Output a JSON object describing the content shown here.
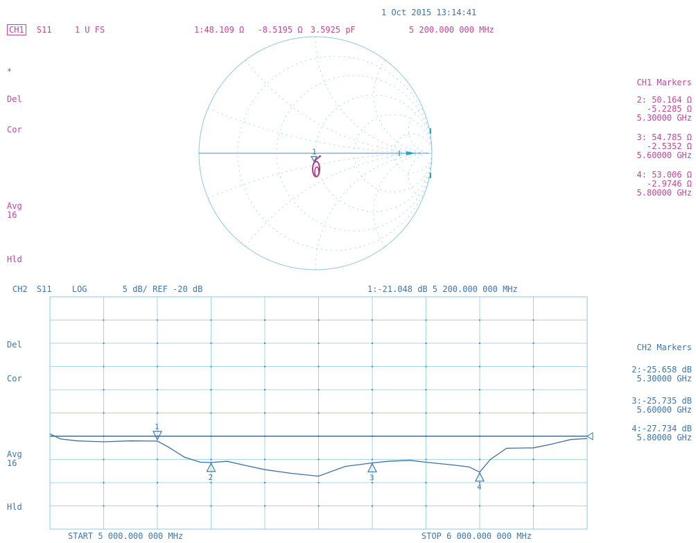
{
  "header": {
    "timestamp": "1 Oct 2015   13:14:41"
  },
  "ch1": {
    "channel": "CH1",
    "param": "S11",
    "format": "1 U FS",
    "marker_readout": {
      "label": "1:",
      "r": "48.109 Ω",
      "x": "-8.5195 Ω",
      "c": "3.5925 pF",
      "freq": "5 200.000 000 MHz"
    },
    "left_flags": [
      "*",
      "Del",
      "Cor",
      "Avg",
      "16",
      "Hld"
    ],
    "markers_title": "CH1 Markers",
    "markers": [
      {
        "id": "2:",
        "r": "50.164 Ω",
        "x": "-5.2285 Ω",
        "freq": "5.30000 GHz"
      },
      {
        "id": "3:",
        "r": "54.785 Ω",
        "x": "-2.5352 Ω",
        "freq": "5.60000 GHz"
      },
      {
        "id": "4:",
        "r": "53.006 Ω",
        "x": "-2.9746 Ω",
        "freq": "5.80000 GHz"
      }
    ],
    "smith_marker_label": "1"
  },
  "ch2": {
    "channel": "CH2",
    "param": "S11",
    "format": "LOG",
    "scale": "5 dB/ REF  -20  dB",
    "marker_readout": "1:-21.048 dB   5 200.000 000 MHz",
    "left_flags": [
      "Del",
      "Cor",
      "Avg",
      "16",
      "Hld"
    ],
    "markers_title": "CH2 Markers",
    "markers": [
      {
        "id": "2:",
        "value": "-25.658 dB",
        "freq": "5.30000 GHz"
      },
      {
        "id": "3:",
        "value": "-25.735 dB",
        "freq": "5.60000 GHz"
      },
      {
        "id": "4:",
        "value": "-27.734 dB",
        "freq": "5.80000 GHz"
      }
    ],
    "start_label": "START 5 000.000 000 MHz",
    "stop_label": "STOP 6 000.000 000 MHz"
  },
  "chart_data": [
    {
      "type": "scatter",
      "chart": "smith",
      "series": [
        {
          "x_ohm": [
            48.1,
            50.2,
            54.8,
            53.0
          ],
          "y_ohm": [
            -8.5,
            -5.2,
            -2.5,
            -3.0
          ],
          "marker_ids": [
            "1",
            "2",
            "3",
            "4"
          ]
        }
      ],
      "colors": {
        "trace": "#b03a8a",
        "grid": "#8ec7e0"
      }
    },
    {
      "type": "line",
      "chart": "log_mag",
      "x_unit": "GHz",
      "y_unit": "dB",
      "xlim": [
        5.0,
        6.0
      ],
      "ylim": [
        -40,
        10
      ],
      "reference_dB": -20,
      "dB_per_div": 5,
      "x": [
        5.0,
        5.02,
        5.05,
        5.1,
        5.15,
        5.2,
        5.22,
        5.25,
        5.28,
        5.3,
        5.33,
        5.36,
        5.4,
        5.45,
        5.5,
        5.55,
        5.6,
        5.63,
        5.67,
        5.7,
        5.75,
        5.78,
        5.8,
        5.82,
        5.85,
        5.9,
        5.93,
        5.97,
        6.0
      ],
      "y": [
        -19.5,
        -20.6,
        -21.0,
        -21.2,
        -21.0,
        -21.05,
        -22.3,
        -24.5,
        -25.6,
        -25.66,
        -25.4,
        -26.2,
        -27.2,
        -28.0,
        -28.6,
        -26.5,
        -25.74,
        -25.4,
        -25.2,
        -25.6,
        -26.2,
        -26.6,
        -27.73,
        -25.0,
        -22.6,
        -22.5,
        -21.8,
        -20.7,
        -20.5
      ],
      "markers": [
        {
          "id": "1",
          "x": 5.2,
          "y": -21.048
        },
        {
          "id": "2",
          "x": 5.3,
          "y": -25.658
        },
        {
          "id": "3",
          "x": 5.6,
          "y": -25.735
        },
        {
          "id": "4",
          "x": 5.8,
          "y": -27.734
        }
      ],
      "colors": {
        "trace": "#3d6f9e",
        "reference": "#3d6f9e",
        "grid": "#8ec7e0"
      }
    }
  ]
}
